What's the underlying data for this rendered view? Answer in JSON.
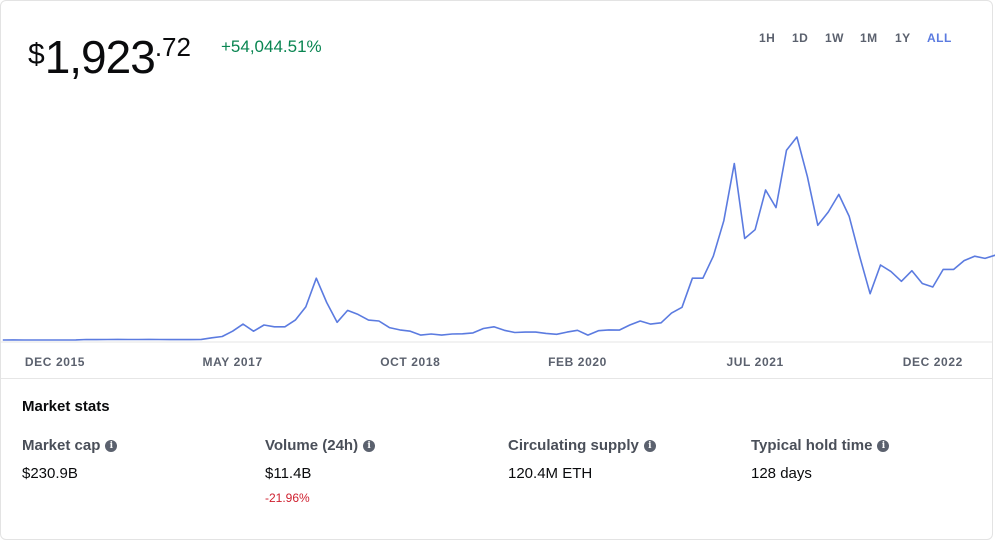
{
  "header": {
    "currency": "$",
    "price_integer": "1,923",
    "price_decimal": ".72",
    "change": "+54,044.51%",
    "timeframes": [
      "1H",
      "1D",
      "1W",
      "1M",
      "1Y",
      "ALL"
    ]
  },
  "chart_data": {
    "type": "line",
    "color": "#5b7be0",
    "x": [
      "2015-07",
      "2015-08",
      "2015-09",
      "2015-10",
      "2015-11",
      "2015-12",
      "2016-01",
      "2016-02",
      "2016-03",
      "2016-04",
      "2016-05",
      "2016-06",
      "2016-07",
      "2016-08",
      "2016-09",
      "2016-10",
      "2016-11",
      "2016-12",
      "2017-01",
      "2017-02",
      "2017-03",
      "2017-04",
      "2017-05",
      "2017-06",
      "2017-07",
      "2017-08",
      "2017-09",
      "2017-10",
      "2017-11",
      "2017-12",
      "2018-01",
      "2018-02",
      "2018-03",
      "2018-04",
      "2018-05",
      "2018-06",
      "2018-07",
      "2018-08",
      "2018-09",
      "2018-10",
      "2018-11",
      "2018-12",
      "2019-01",
      "2019-02",
      "2019-03",
      "2019-04",
      "2019-05",
      "2019-06",
      "2019-07",
      "2019-08",
      "2019-09",
      "2019-10",
      "2019-11",
      "2019-12",
      "2020-01",
      "2020-02",
      "2020-03",
      "2020-04",
      "2020-05",
      "2020-06",
      "2020-07",
      "2020-08",
      "2020-09",
      "2020-10",
      "2020-11",
      "2020-12",
      "2021-01",
      "2021-02",
      "2021-03",
      "2021-04",
      "2021-05",
      "2021-06",
      "2021-07",
      "2021-08",
      "2021-09",
      "2021-10",
      "2021-11",
      "2021-12",
      "2022-01",
      "2022-02",
      "2022-03",
      "2022-04",
      "2022-05",
      "2022-06",
      "2022-07",
      "2022-08",
      "2022-09",
      "2022-10",
      "2022-11",
      "2022-12",
      "2023-01",
      "2023-02",
      "2023-03",
      "2023-04",
      "2023-05",
      "2023-06"
    ],
    "values": [
      1,
      1.3,
      0.9,
      0.6,
      0.9,
      0.9,
      1,
      3,
      11,
      8,
      12,
      14,
      12,
      11,
      13,
      11,
      9,
      8,
      10,
      13,
      50,
      80,
      200,
      360,
      200,
      340,
      300,
      300,
      450,
      750,
      1400,
      850,
      400,
      670,
      580,
      450,
      430,
      280,
      230,
      200,
      110,
      135,
      110,
      135,
      140,
      160,
      260,
      300,
      220,
      170,
      180,
      180,
      150,
      130,
      180,
      220,
      110,
      210,
      230,
      225,
      340,
      430,
      360,
      390,
      610,
      740,
      1400,
      1400,
      1900,
      2700,
      4000,
      2300,
      2500,
      3400,
      3000,
      4300,
      4600,
      3700,
      2600,
      2900,
      3300,
      2800,
      1900,
      1050,
      1700,
      1550,
      1330,
      1570,
      1280,
      1200,
      1600,
      1600,
      1800,
      1900,
      1850,
      1923.72
    ],
    "xticks": [
      {
        "value": "2015-12",
        "label": "DEC 2015"
      },
      {
        "value": "2017-05",
        "label": "MAY 2017"
      },
      {
        "value": "2018-10",
        "label": "OCT 2018"
      },
      {
        "value": "2020-02",
        "label": "FEB 2020"
      },
      {
        "value": "2021-07",
        "label": "JUL 2021"
      },
      {
        "value": "2022-12",
        "label": "DEC 2022"
      }
    ]
  },
  "stats": {
    "title": "Market stats",
    "items": [
      {
        "label": "Market cap",
        "value": "$230.9B"
      },
      {
        "label": "Volume (24h)",
        "value": "$11.4B",
        "change": "-21.96%"
      },
      {
        "label": "Circulating supply",
        "value": "120.4M ETH"
      },
      {
        "label": "Typical hold time",
        "value": "128 days"
      }
    ]
  }
}
